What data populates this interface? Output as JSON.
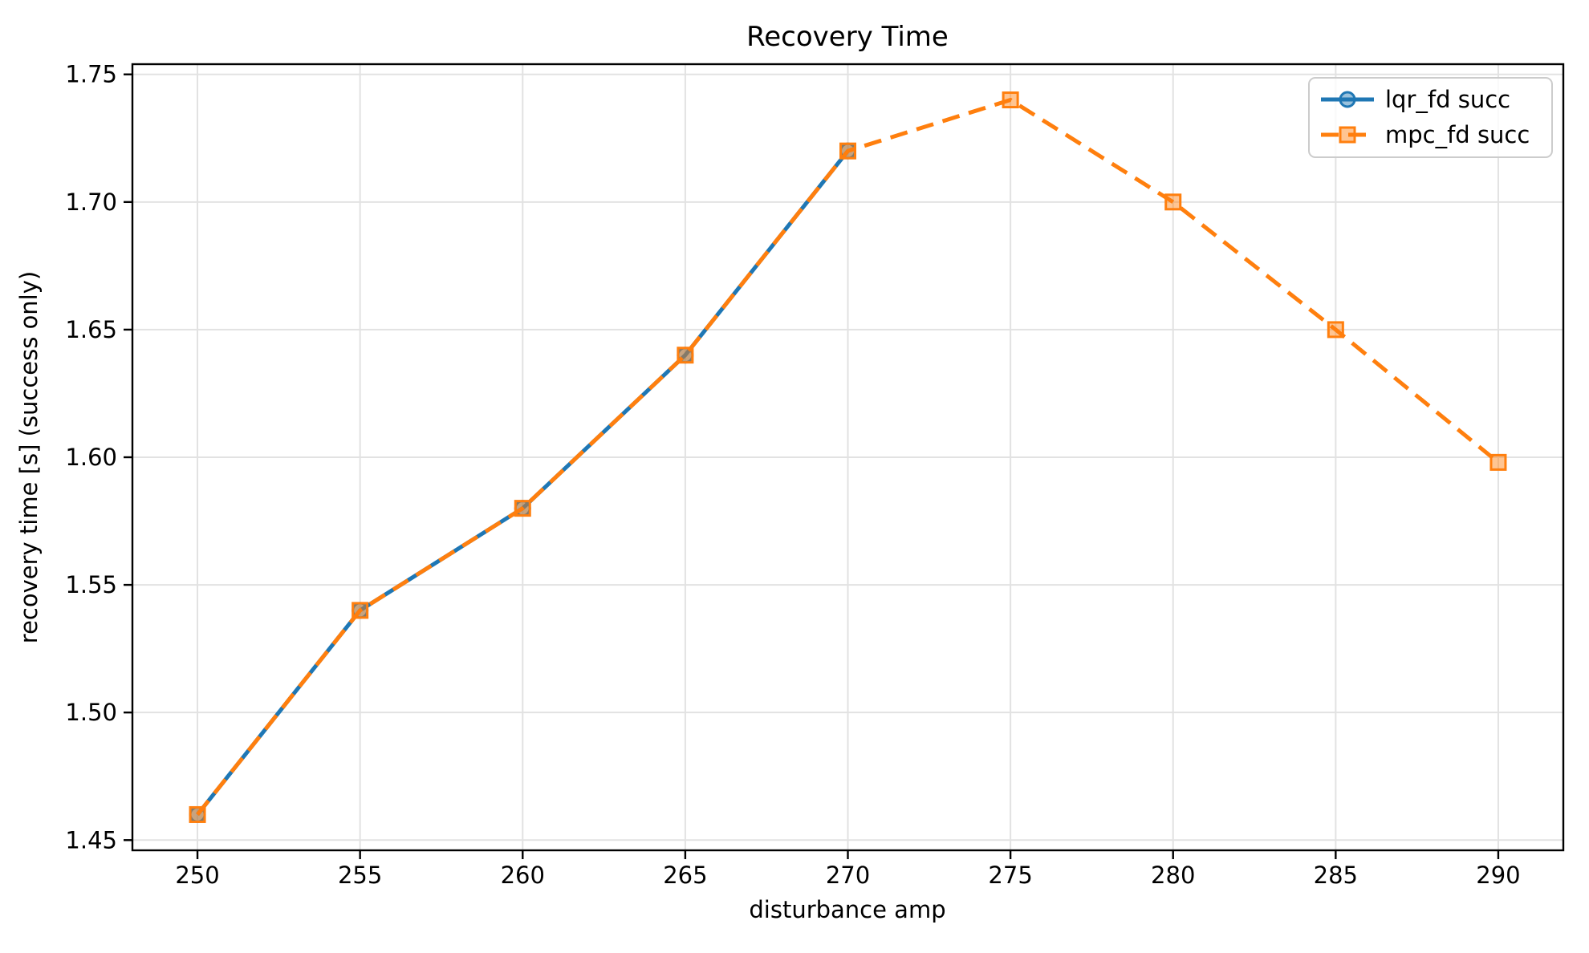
{
  "figure": {
    "background": "#ffffff",
    "frame_color": "#000000",
    "grid_color": "#e2e2e2",
    "text_color": "#000000",
    "legend_border_color": "#cccccc"
  },
  "chart_data": {
    "type": "line",
    "title": "Recovery Time",
    "xlabel": "disturbance amp",
    "ylabel": "recovery time [s] (success only)",
    "xlim": [
      248,
      292
    ],
    "ylim": [
      1.446,
      1.754
    ],
    "xtick_values": [
      250,
      255,
      260,
      265,
      270,
      275,
      280,
      285,
      290
    ],
    "xtick_labels": [
      "250",
      "255",
      "260",
      "265",
      "270",
      "275",
      "280",
      "285",
      "290"
    ],
    "ytick_values": [
      1.45,
      1.5,
      1.55,
      1.6,
      1.65,
      1.7,
      1.75
    ],
    "ytick_labels": [
      "1.45",
      "1.50",
      "1.55",
      "1.60",
      "1.65",
      "1.70",
      "1.75"
    ],
    "grid": true,
    "legend_position": "upper right",
    "series": [
      {
        "name": "lqr_fd succ",
        "color": "#1f77b4",
        "line_style": "solid",
        "marker": "circle",
        "x": [
          250,
          255,
          260,
          265,
          270
        ],
        "y": [
          1.46,
          1.54,
          1.58,
          1.64,
          1.72
        ]
      },
      {
        "name": "mpc_fd succ",
        "color": "#ff7f0e",
        "line_style": "dashed",
        "marker": "square",
        "x": [
          250,
          255,
          260,
          265,
          270,
          275,
          280,
          285,
          290
        ],
        "y": [
          1.46,
          1.54,
          1.58,
          1.64,
          1.72,
          1.74,
          1.7,
          1.65,
          1.598
        ]
      }
    ]
  }
}
